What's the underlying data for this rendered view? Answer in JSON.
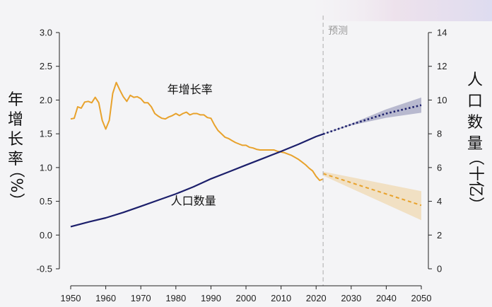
{
  "chart_data": {
    "type": "line",
    "projection_label": "预测",
    "left_axis": {
      "label": "年增长率（%）",
      "ylim": [
        -0.5,
        3.0
      ],
      "ticks": [
        "-0.5",
        "0.0",
        "0.5",
        "1.0",
        "1.5",
        "2.0",
        "2.5",
        "3.0"
      ]
    },
    "right_axis": {
      "label": "人口数量（十亿）",
      "ylim": [
        0,
        14
      ],
      "ticks": [
        "0",
        "2",
        "4",
        "6",
        "8",
        "10",
        "12",
        "14"
      ]
    },
    "x_axis": {
      "xlim": [
        1948,
        2052
      ],
      "ticks": [
        "1950",
        "1960",
        "1970",
        "1980",
        "1990",
        "2000",
        "2010",
        "2020",
        "2030",
        "2040",
        "2050"
      ]
    },
    "projection_start": 2022,
    "series": [
      {
        "name": "年增长率",
        "axis": "left",
        "color": "#e8a22c",
        "x": [
          1950,
          1951,
          1952,
          1953,
          1954,
          1955,
          1956,
          1957,
          1958,
          1959,
          1960,
          1961,
          1962,
          1963,
          1964,
          1965,
          1966,
          1967,
          1968,
          1969,
          1970,
          1971,
          1972,
          1973,
          1974,
          1975,
          1976,
          1977,
          1978,
          1979,
          1980,
          1981,
          1982,
          1983,
          1984,
          1985,
          1986,
          1987,
          1988,
          1989,
          1990,
          1991,
          1992,
          1993,
          1994,
          1995,
          1996,
          1997,
          1998,
          1999,
          2000,
          2001,
          2002,
          2003,
          2004,
          2005,
          2006,
          2007,
          2008,
          2009,
          2010,
          2011,
          2012,
          2013,
          2014,
          2015,
          2016,
          2017,
          2018,
          2019,
          2020,
          2021,
          2022
        ],
        "values": [
          1.72,
          1.73,
          1.9,
          1.88,
          1.97,
          1.98,
          1.96,
          2.04,
          1.96,
          1.7,
          1.57,
          1.7,
          2.1,
          2.26,
          2.15,
          2.05,
          1.98,
          2.07,
          2.04,
          2.05,
          2.02,
          1.96,
          1.96,
          1.9,
          1.8,
          1.76,
          1.73,
          1.72,
          1.75,
          1.77,
          1.8,
          1.77,
          1.8,
          1.82,
          1.78,
          1.8,
          1.8,
          1.78,
          1.78,
          1.74,
          1.73,
          1.63,
          1.55,
          1.5,
          1.45,
          1.43,
          1.4,
          1.37,
          1.35,
          1.33,
          1.33,
          1.3,
          1.29,
          1.27,
          1.26,
          1.26,
          1.26,
          1.26,
          1.26,
          1.24,
          1.23,
          1.22,
          1.2,
          1.18,
          1.15,
          1.12,
          1.08,
          1.04,
          0.99,
          0.95,
          0.87,
          0.81,
          0.83
        ]
      },
      {
        "name": "年增长率（预测）",
        "axis": "left",
        "color": "#e8a22c",
        "style": "dashed",
        "x": [
          2022,
          2050
        ],
        "values": [
          0.91,
          0.44
        ],
        "band_upper": [
          0.94,
          0.65
        ],
        "band_lower": [
          0.88,
          0.22
        ]
      },
      {
        "name": "人口数量",
        "axis": "right",
        "color": "#1c1f6b",
        "x": [
          1950,
          1955,
          1960,
          1965,
          1970,
          1975,
          1980,
          1985,
          1990,
          1995,
          2000,
          2005,
          2010,
          2015,
          2020,
          2022
        ],
        "values": [
          2.5,
          2.77,
          3.02,
          3.34,
          3.7,
          4.07,
          4.44,
          4.86,
          5.33,
          5.74,
          6.15,
          6.55,
          6.96,
          7.38,
          7.84,
          7.98
        ]
      },
      {
        "name": "人口数量（预测）",
        "axis": "right",
        "color": "#1c1f6b",
        "style": "dotted",
        "x": [
          2022,
          2030,
          2040,
          2050
        ],
        "values": [
          7.98,
          8.55,
          9.2,
          9.7
        ],
        "band_upper": [
          8.0,
          8.6,
          9.45,
          10.15
        ],
        "band_lower": [
          7.96,
          8.5,
          8.95,
          9.25
        ]
      }
    ],
    "annotations": [
      {
        "text": "年增长率",
        "x": 1984,
        "axis": "left",
        "y": 2.1
      },
      {
        "text": "人口数量",
        "x": 1985,
        "axis": "left",
        "y": 0.45
      }
    ]
  }
}
